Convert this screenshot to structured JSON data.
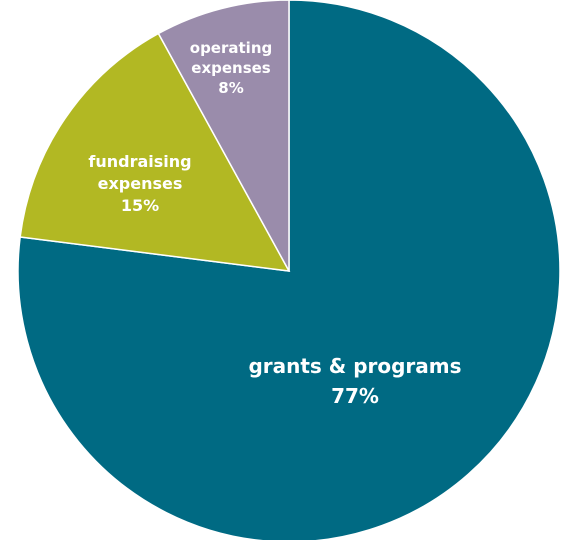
{
  "chart_data": {
    "type": "pie",
    "start_angle_deg": 0,
    "direction": "clockwise",
    "slices": [
      {
        "label": [
          "grants & programs"
        ],
        "value": 77,
        "display": "77%",
        "color": "#006a83"
      },
      {
        "label": [
          "fundraising",
          "expenses"
        ],
        "value": 15,
        "display": "15%",
        "color": "#b2b823"
      },
      {
        "label": [
          "operating",
          "expenses"
        ],
        "value": 8,
        "display": "8%",
        "color": "#9a8cab"
      }
    ]
  }
}
